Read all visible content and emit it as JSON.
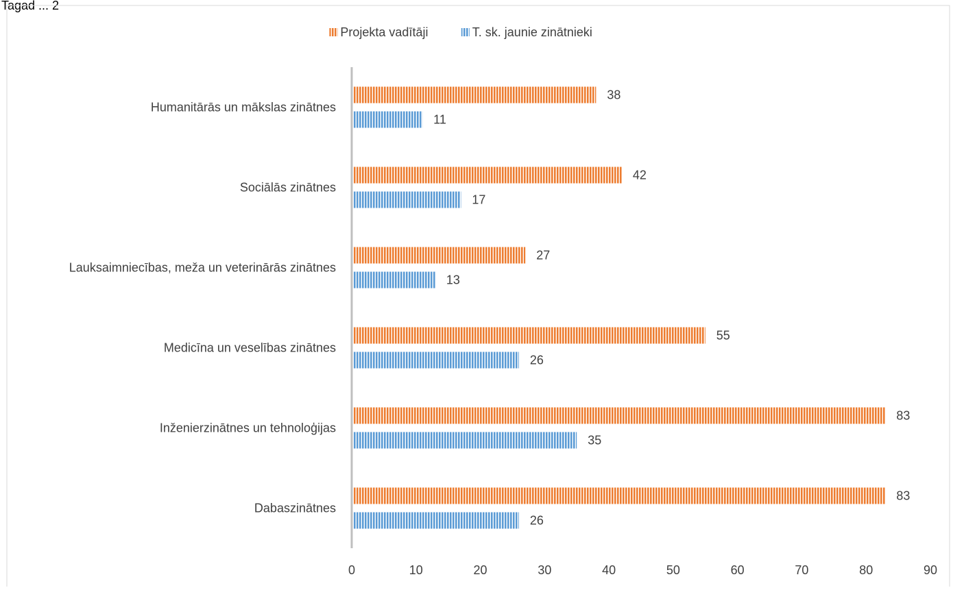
{
  "page_header_fragment": "Tagad ... 2",
  "chart_data": {
    "type": "bar",
    "orientation": "horizontal",
    "categories": [
      "Humanitārās un mākslas zinātnes",
      "Sociālās zinātnes",
      "Lauksaimniecības, meža un veterinārās zinātnes",
      "Medicīna un veselības zinātnes",
      "Inženierzinātnes un tehnoloģijas",
      "Dabaszinātnes"
    ],
    "series": [
      {
        "name": "Projekta vadītāji",
        "values": [
          38,
          42,
          27,
          55,
          83,
          83
        ],
        "color": "#ED7D31"
      },
      {
        "name": "T. sk. jaunie zinātnieki",
        "values": [
          11,
          17,
          13,
          26,
          35,
          26
        ],
        "color": "#5B9BD5"
      }
    ],
    "title": "",
    "xlabel": "",
    "ylabel": "",
    "xlim": [
      0,
      90
    ],
    "x_ticks": [
      "0",
      "10",
      "20",
      "30",
      "40",
      "50",
      "60",
      "70",
      "80",
      "90"
    ],
    "grid": false,
    "legend_position": "top",
    "data_labels": true,
    "bar_pattern": "vertical-stripes"
  }
}
